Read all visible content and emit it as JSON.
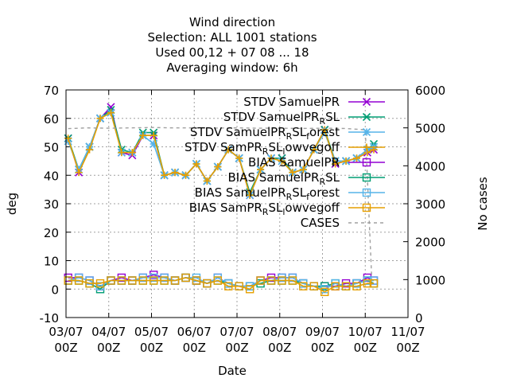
{
  "chart_data": {
    "type": "line",
    "title_lines": [
      "Wind direction",
      "Selection: ALL    1001 stations",
      "Used  00,12  + 07 08 ... 18",
      "Averaging window:  6h"
    ],
    "xlabel": "Date",
    "ylabel": "deg",
    "y2label": "No cases",
    "ylim": [
      -10,
      70
    ],
    "y2lim": [
      0,
      6000
    ],
    "yticks": [
      -10,
      0,
      10,
      20,
      30,
      40,
      50,
      60,
      70
    ],
    "y2ticks": [
      0,
      1000,
      2000,
      3000,
      4000,
      5000,
      6000
    ],
    "xlim": [
      0,
      8
    ],
    "xticks": [
      {
        "pos": 0,
        "line1": "03/07",
        "line2": "00Z"
      },
      {
        "pos": 1,
        "line1": "04/07",
        "line2": "00Z"
      },
      {
        "pos": 2,
        "line1": "05/07",
        "line2": "00Z"
      },
      {
        "pos": 3,
        "line1": "06/07",
        "line2": "00Z"
      },
      {
        "pos": 4,
        "line1": "07/07",
        "line2": "00Z"
      },
      {
        "pos": 5,
        "line1": "08/07",
        "line2": "00Z"
      },
      {
        "pos": 6,
        "line1": "09/07",
        "line2": "00Z"
      },
      {
        "pos": 7,
        "line1": "10/07",
        "line2": "00Z"
      },
      {
        "pos": 8,
        "line1": "11/07",
        "line2": "00Z"
      }
    ],
    "grid": true,
    "legend_position": "top-right",
    "x": [
      0.05,
      0.3,
      0.55,
      0.8,
      1.05,
      1.3,
      1.55,
      1.8,
      2.05,
      2.3,
      2.55,
      2.8,
      3.05,
      3.3,
      3.55,
      3.8,
      4.05,
      4.3,
      4.55,
      4.8,
      5.05,
      5.3,
      5.55,
      5.8,
      6.05,
      6.3,
      6.55,
      6.8,
      7.05,
      7.2
    ],
    "series": [
      {
        "name": "STDV SamuelPR",
        "name_base": "STDV SamuelPR",
        "axis": "y1",
        "color": "#9400d3",
        "marker": "x-cross",
        "values": [
          53,
          41,
          50,
          60,
          64,
          48,
          47,
          54,
          54,
          40,
          41,
          40,
          44,
          38,
          43,
          49,
          46,
          33,
          42,
          46,
          46,
          41,
          42,
          49,
          56,
          44,
          45,
          46,
          48,
          49
        ]
      },
      {
        "name": "STDV SamuelPR_RSL",
        "name_base": "STDV SamuelPR",
        "name_sub": "R",
        "name_tail": "SL",
        "axis": "y1",
        "color": "#009e73",
        "marker": "x-star",
        "values": [
          53,
          42,
          50,
          60,
          63,
          49,
          48,
          55,
          55,
          40,
          41,
          40,
          44,
          38,
          43,
          49,
          46,
          34,
          42,
          46,
          46,
          41,
          42,
          49,
          56,
          45,
          45,
          46,
          49,
          51
        ]
      },
      {
        "name": "STDV SamuelPR_RSL_forest",
        "name_base": "STDV SamuelPR",
        "name_sub": "R",
        "name_tail": "SL",
        "name_sub2": "f",
        "name_tail2": "orest",
        "axis": "y1",
        "color": "#56b4e9",
        "marker": "star",
        "values": [
          52,
          42,
          50,
          60,
          62,
          48,
          48,
          54,
          51,
          40,
          41,
          40,
          44,
          38,
          43,
          49,
          46,
          33,
          42,
          46,
          45,
          41,
          42,
          49,
          55,
          45,
          45,
          46,
          49,
          50
        ]
      },
      {
        "name": "STDV SamPR_RSL_lowvegoff",
        "name_base": "STDV SamPR",
        "name_sub": "R",
        "name_tail": "SL",
        "name_sub2": "l",
        "name_tail2": "owvegoff",
        "axis": "y1",
        "color": "#e69f00",
        "marker": "plus",
        "values": [
          53,
          41,
          49,
          60,
          62,
          48,
          48,
          54,
          54,
          40,
          41,
          40,
          44,
          38,
          43,
          49,
          46,
          33,
          42,
          46,
          45,
          41,
          42,
          49,
          56,
          44,
          45,
          46,
          48,
          49
        ]
      },
      {
        "name": "BIAS SamuelPR",
        "name_base": "BIAS SamuelPR",
        "axis": "y1",
        "color": "#9400d3",
        "marker": "square",
        "values": [
          4,
          4,
          3,
          1,
          3,
          4,
          3,
          4,
          5,
          4,
          3,
          4,
          3,
          2,
          4,
          2,
          1,
          1,
          3,
          4,
          4,
          4,
          2,
          1,
          1,
          1,
          2,
          2,
          4,
          3
        ]
      },
      {
        "name": "BIAS SamuelPR_RSL",
        "name_base": "BIAS SamuelPR",
        "name_sub": "R",
        "name_tail": "SL",
        "axis": "y1",
        "color": "#009e73",
        "marker": "square",
        "values": [
          3,
          3,
          2,
          0,
          3,
          3,
          3,
          3,
          3,
          3,
          3,
          4,
          3,
          2,
          3,
          2,
          1,
          1,
          2,
          3,
          3,
          3,
          2,
          1,
          1,
          2,
          1,
          2,
          3,
          2
        ]
      },
      {
        "name": "BIAS SamuelPR_RSL_forest",
        "name_base": "BIAS SamuelPR",
        "name_sub": "R",
        "name_tail": "SL",
        "name_sub2": "f",
        "name_tail2": "orest",
        "axis": "y1",
        "color": "#56b4e9",
        "marker": "square",
        "values": [
          3,
          4,
          3,
          1,
          3,
          3,
          3,
          4,
          4,
          4,
          3,
          4,
          4,
          2,
          4,
          2,
          1,
          1,
          3,
          3,
          4,
          4,
          2,
          1,
          0,
          2,
          1,
          2,
          3,
          3
        ]
      },
      {
        "name": "BIAS SamPR_RSL_lowvegoff",
        "name_base": "BIAS SamPR",
        "name_sub": "R",
        "name_tail": "SL",
        "name_sub2": "l",
        "name_tail2": "owvegoff",
        "axis": "y1",
        "color": "#e69f00",
        "marker": "square",
        "values": [
          3,
          3,
          2,
          2,
          3,
          3,
          3,
          3,
          3,
          3,
          3,
          4,
          3,
          2,
          3,
          1,
          1,
          0,
          3,
          3,
          3,
          3,
          1,
          1,
          -1,
          1,
          1,
          1,
          2,
          2
        ]
      },
      {
        "name": "CASES",
        "name_base": "CASES",
        "axis": "y2",
        "color": "#a0a0a0",
        "marker": "none",
        "dashed": true,
        "x": [
          0.05,
          0.5,
          1.0,
          1.5,
          2.05,
          2.5,
          3.0,
          3.5,
          4.05,
          4.5,
          5.05,
          5.5,
          6.05,
          6.5,
          7.0,
          7.15
        ],
        "values": [
          4980,
          5000,
          4990,
          5000,
          5010,
          5000,
          5000,
          4995,
          5000,
          4990,
          4990,
          4985,
          4990,
          4985,
          4950,
          1080
        ]
      }
    ]
  }
}
